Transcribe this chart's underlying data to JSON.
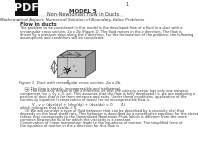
{
  "pdf_label": "PDF",
  "page_number": "1",
  "model_title": "MODEL 5",
  "model_subtitle": "Non-Newtonian Flow in Ducts",
  "math_aspect_label": "Mathematical Aspect: Numerical Solution of Boundary-Value Problems",
  "section_title": "Flow in ducts",
  "body_text_lines": [
    "The problem to be considered in this model is the developed flow of a fluid in a duct with a",
    "rectangular cross section, 2a x 2b (Figure 1). The fluid moves in the z direction. The flow is",
    "driven by a pressure drop along the z direction. For the formulation of the problem, the following",
    "assumptions and conditions will be considered:"
  ],
  "figure_caption": "Figure 1. Duct with rectangular cross section, 2a x 2b.",
  "assumption_1": "    (1) The flow is steady, incompressible and isothermal.",
  "assumption_2": "    (2) The fluid only moves in the z direction, so that the velocity vector has only one nonzero",
  "assumption_2b": "component (vx = vy = 0, vz). This assumes that the flow is fully developed i.e. we are analyzing a",
  "assumption_2c": "portion of duct that is far from entrance and exits. Under these conditions, application of the",
  "assumption_2d": "continuity equation (conservation of mass) for an incompressible flow is",
  "equation_continuity": "V . v = (dvx/dx) + (dvy/dy) + (dvz/dz) = 0",
  "equation_label": "(1)",
  "equation_result": "which indicates that dvz/dz = 0.",
  "assumption_3_start": "    (3) We will consider a type of fluid behavior that can be described by a viscosity n(s) that",
  "assumption_3b": "depends on the local shear rate. This behavior is described by a constitutive equation for the stress",
  "assumption_3c": "tensor that corresponds to the Generalized Newtonian Fluid, which is different from the more",
  "assumption_3d": "common Newtonian fluid for which the viscosity is a constant.",
  "assumption_3e": "Conservation of linear momentum leads to the equations of motion. The simplified form of",
  "assumption_3f": "the equation of motion in the z direction for this flow is",
  "bg_color": "#ffffff",
  "pdf_bg": "#111111",
  "pdf_text": "#ffffff",
  "text_color": "#333333",
  "cube_front_color": "#c8c8c8",
  "cube_top_color": "#b0b0b0",
  "cube_right_color": "#909090",
  "cube_edge_color": "#444444"
}
